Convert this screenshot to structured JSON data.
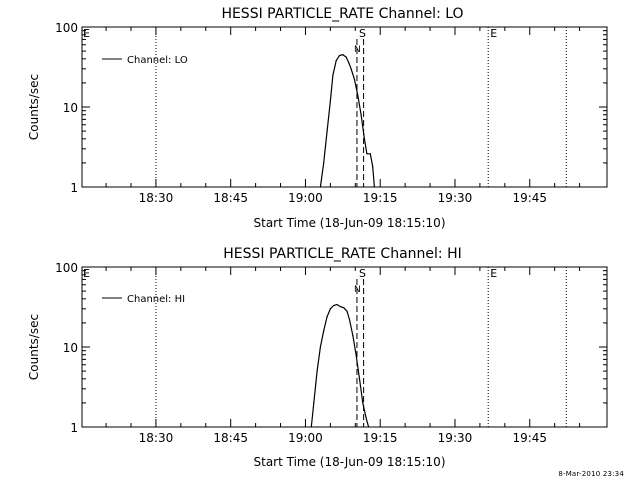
{
  "footer_timestamp": "8-Mar-2010 23:34",
  "chart_data": [
    {
      "type": "line",
      "title": "HESSI PARTICLE_RATE Channel: LO",
      "xlabel": "Start Time (18-Jun-09 18:15:10)",
      "ylabel": "Counts/sec",
      "y_scale": "log",
      "ylim": [
        1,
        100
      ],
      "yticks": [
        "1",
        "10",
        "100"
      ],
      "xlim": [
        "18:15:10",
        "20:00:30"
      ],
      "xticks": [
        "18:30",
        "18:45",
        "19:00",
        "19:15",
        "19:30",
        "19:45"
      ],
      "legend": {
        "placement": "top-left",
        "entries": [
          "Channel: LO"
        ]
      },
      "series": [
        {
          "name": "Channel: LO",
          "x": [
            "19:03:00",
            "19:03:40",
            "19:04:20",
            "19:05:00",
            "19:05:30",
            "19:06:10",
            "19:06:50",
            "19:07:30",
            "19:08:10",
            "19:08:40",
            "19:09:10",
            "19:09:50",
            "19:10:30",
            "19:11:10",
            "19:11:50",
            "19:12:20",
            "19:13:00",
            "19:13:30",
            "19:13:50"
          ],
          "y": [
            1,
            2,
            5,
            12,
            25,
            38,
            44,
            45,
            42,
            36,
            30,
            22,
            14,
            8,
            4,
            2.6,
            2.6,
            1.8,
            1
          ]
        }
      ],
      "markers": [
        {
          "label": "S",
          "time": "19:10:20",
          "style": "dashed"
        },
        {
          "label": "",
          "time": "19:11:40",
          "style": "dashed"
        },
        {
          "label": "N",
          "time": "19:10:20",
          "style": "none"
        },
        {
          "label": "E",
          "time": "19:36:40",
          "style": "dotted"
        },
        {
          "label": "E",
          "time": "18:15:10",
          "style": "none"
        },
        {
          "label": "",
          "time": "18:30:00",
          "style": "dotted"
        },
        {
          "label": "",
          "time": "19:52:20",
          "style": "dotted"
        }
      ]
    },
    {
      "type": "line",
      "title": "HESSI PARTICLE_RATE Channel: HI",
      "xlabel": "Start Time (18-Jun-09 18:15:10)",
      "ylabel": "Counts/sec",
      "y_scale": "log",
      "ylim": [
        1,
        100
      ],
      "yticks": [
        "1",
        "10",
        "100"
      ],
      "xlim": [
        "18:15:10",
        "20:00:30"
      ],
      "xticks": [
        "18:30",
        "18:45",
        "19:00",
        "19:15",
        "19:30",
        "19:45"
      ],
      "legend": {
        "placement": "top-left",
        "entries": [
          "Channel: HI"
        ]
      },
      "series": [
        {
          "name": "Channel: HI",
          "x": [
            "19:01:10",
            "19:01:40",
            "19:02:20",
            "19:03:00",
            "19:03:40",
            "19:04:20",
            "19:05:00",
            "19:05:40",
            "19:06:20",
            "19:07:00",
            "19:07:40",
            "19:08:20",
            "19:08:50",
            "19:09:30",
            "19:10:10",
            "19:10:50",
            "19:11:30",
            "19:12:10",
            "19:12:40"
          ],
          "y": [
            1,
            2,
            5,
            10,
            16,
            24,
            30,
            33,
            34,
            32,
            31,
            28,
            22,
            14,
            8,
            4,
            2,
            1.3,
            1
          ]
        }
      ],
      "markers": [
        {
          "label": "S",
          "time": "19:10:20",
          "style": "dashed"
        },
        {
          "label": "",
          "time": "19:11:40",
          "style": "dashed"
        },
        {
          "label": "N",
          "time": "19:10:20",
          "style": "none"
        },
        {
          "label": "E",
          "time": "19:36:40",
          "style": "dotted"
        },
        {
          "label": "E",
          "time": "18:15:10",
          "style": "none"
        },
        {
          "label": "",
          "time": "18:30:00",
          "style": "dotted"
        },
        {
          "label": "",
          "time": "19:52:20",
          "style": "dotted"
        }
      ]
    }
  ]
}
